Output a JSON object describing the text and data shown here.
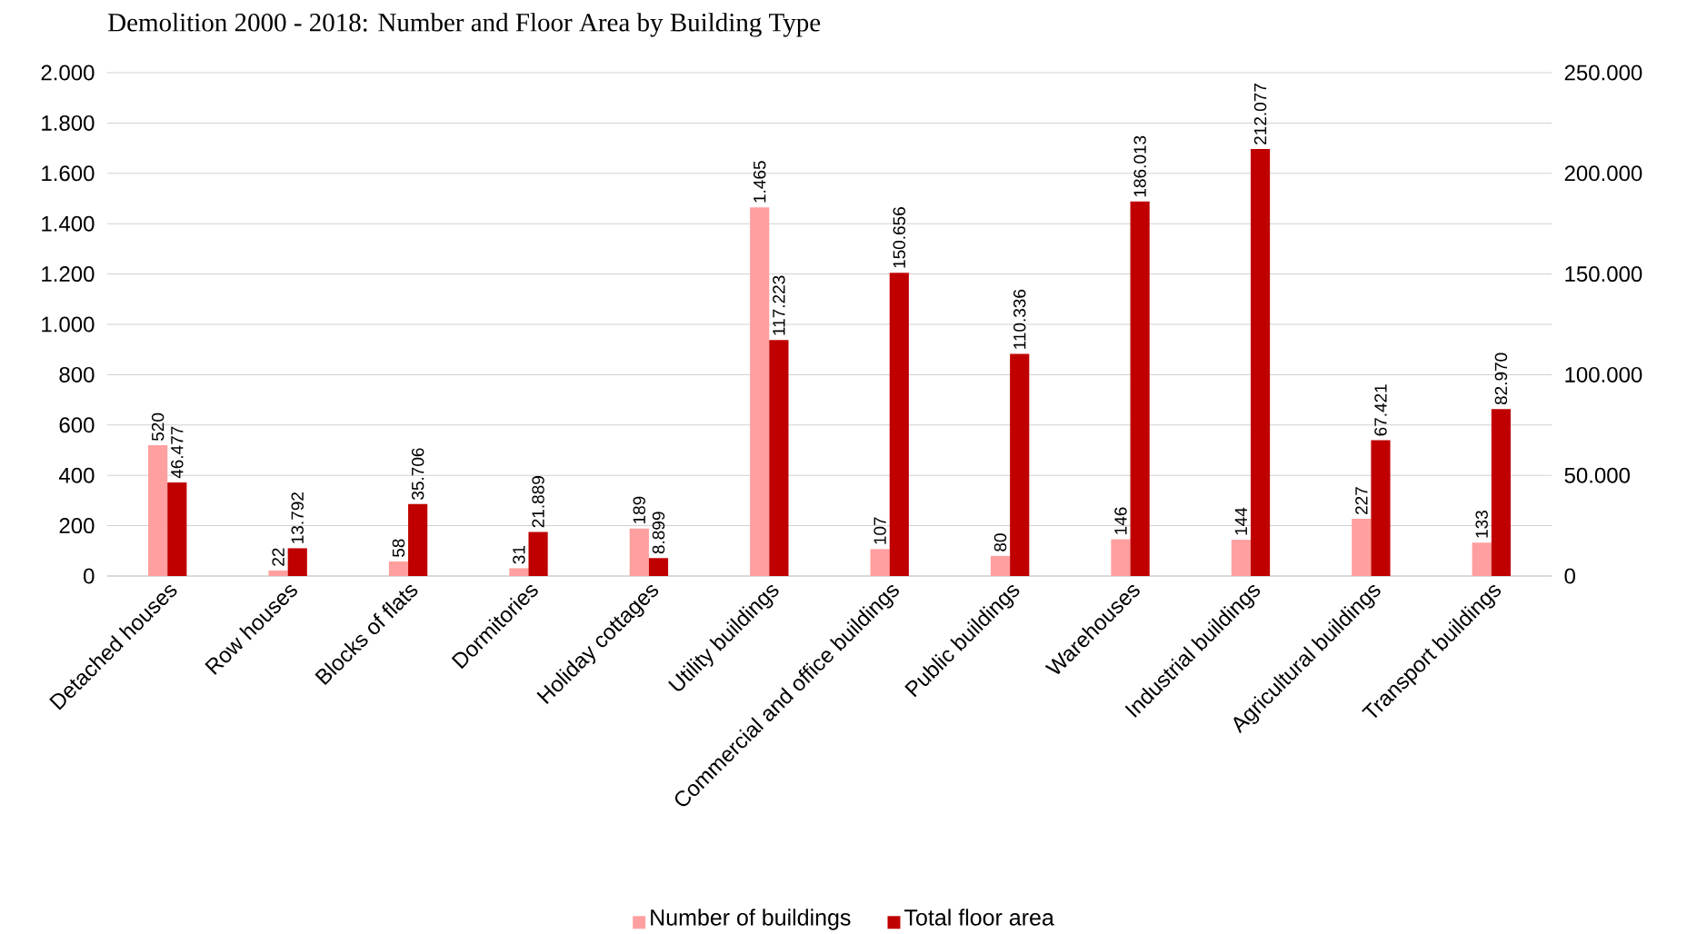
{
  "chart_data": {
    "type": "bar",
    "title": "Demolition 2000 - 2018: Number and Floor Area by Building Type",
    "categories": [
      "Detached houses",
      "Row houses",
      "Blocks of flats",
      "Dormitories",
      "Holiday cottages",
      "Utility buildings",
      "Commercial and office buildings",
      "Public buildings",
      "Warehouses",
      "Industrial buildings",
      "Agricultural buildings",
      "Transport buildings"
    ],
    "series": [
      {
        "name": "Number of buildings",
        "color": "#ff9f9f",
        "values": [
          520,
          22,
          58,
          31,
          189,
          1465,
          107,
          80,
          146,
          144,
          227,
          133
        ],
        "value_labels": [
          "520",
          "22",
          "58",
          "31",
          "189",
          "1.465",
          "107",
          "80",
          "146",
          "144",
          "227",
          "133"
        ]
      },
      {
        "name": "Total floor area",
        "color": "#c00000",
        "axis": "y2",
        "values": [
          46477,
          13792,
          35706,
          21889,
          8899,
          117223,
          150656,
          110336,
          186013,
          212077,
          67421,
          82970
        ],
        "value_labels": [
          "46.477",
          "13.792",
          "35.706",
          "21.889",
          "8.899",
          "117.223",
          "150.656",
          "110.336",
          "186.013",
          "212.077",
          "67.421",
          "82.970"
        ]
      }
    ],
    "ylim": [
      0,
      2000
    ],
    "yticks": [
      0,
      {
        "value": 200,
        "label": "200"
      },
      {
        "value": 400,
        "label": "400"
      },
      {
        "value": 600,
        "label": "600"
      },
      {
        "value": 800,
        "label": "800"
      },
      {
        "value": 1000,
        "label": "1.000"
      },
      {
        "value": 1200,
        "label": "1.200"
      },
      {
        "value": 1400,
        "label": "1.400"
      },
      {
        "value": 1600,
        "label": "1.600"
      },
      {
        "value": 1800,
        "label": "1.800"
      },
      {
        "value": 2000,
        "label": "2.000"
      }
    ],
    "y2lim": [
      0,
      250000
    ],
    "y2ticks": [
      0,
      {
        "value": 50000,
        "label": "50.000"
      },
      {
        "value": 100000,
        "label": "100.000"
      },
      {
        "value": 150000,
        "label": "150.000"
      },
      {
        "value": 200000,
        "label": "200.000"
      },
      {
        "value": 250000,
        "label": "250.000"
      }
    ],
    "grid": "y",
    "legend": "bottom"
  }
}
